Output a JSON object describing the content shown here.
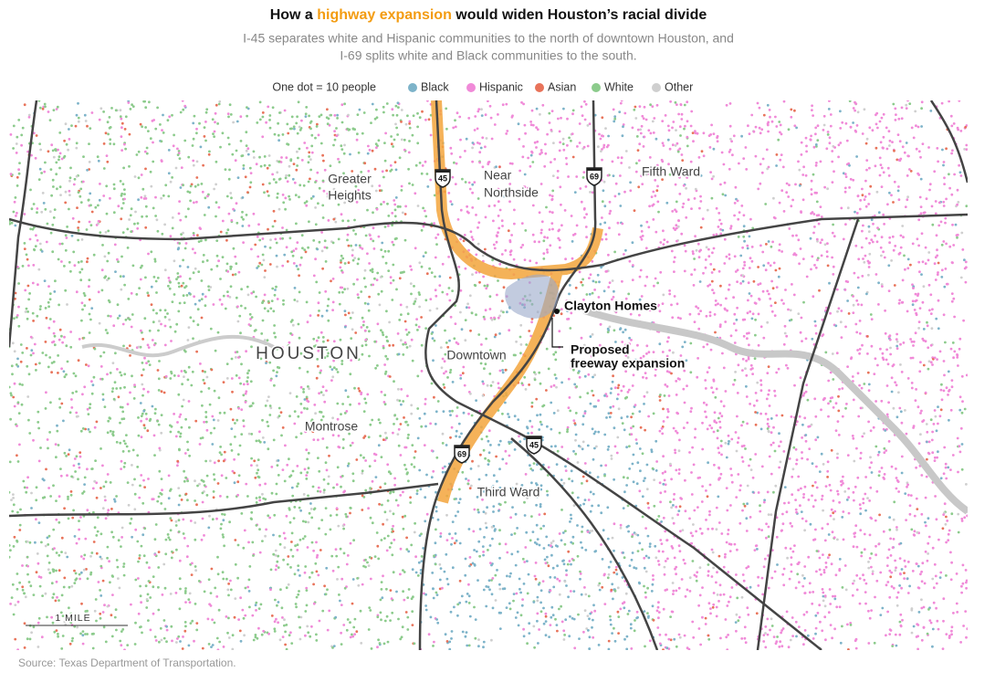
{
  "header": {
    "title": {
      "before": "How a ",
      "highlight": "highway expansion",
      "after": " would widen Houston’s racial divide"
    },
    "subtitle": [
      "I-45 separates white and Hispanic communities to the north of downtown Houston, and",
      "I-69 splits white and Black communities to the south."
    ]
  },
  "legend": {
    "note": "One dot = 10 people",
    "items": [
      {
        "label": "Black",
        "color": "#7db3c9"
      },
      {
        "label": "Hispanic",
        "color": "#f08ad8"
      },
      {
        "label": "Asian",
        "color": "#e8735a"
      },
      {
        "label": "White",
        "color": "#8ccb8c"
      },
      {
        "label": "Other",
        "color": "#cfcfcf"
      }
    ]
  },
  "map": {
    "labels": [
      "Greater",
      "Heights",
      "Near",
      "Northside",
      "Fifth Ward",
      "HOUSTON",
      "Downtown",
      "Montrose",
      "Third Ward"
    ],
    "shields": [
      "45",
      "69",
      "69",
      "45"
    ],
    "annotations": {
      "clayton": "Clayton Homes",
      "proposed": [
        "Proposed",
        "freeway expansion"
      ]
    },
    "scale": "1 MILE"
  },
  "source": "Source: Texas Department of Transportation."
}
